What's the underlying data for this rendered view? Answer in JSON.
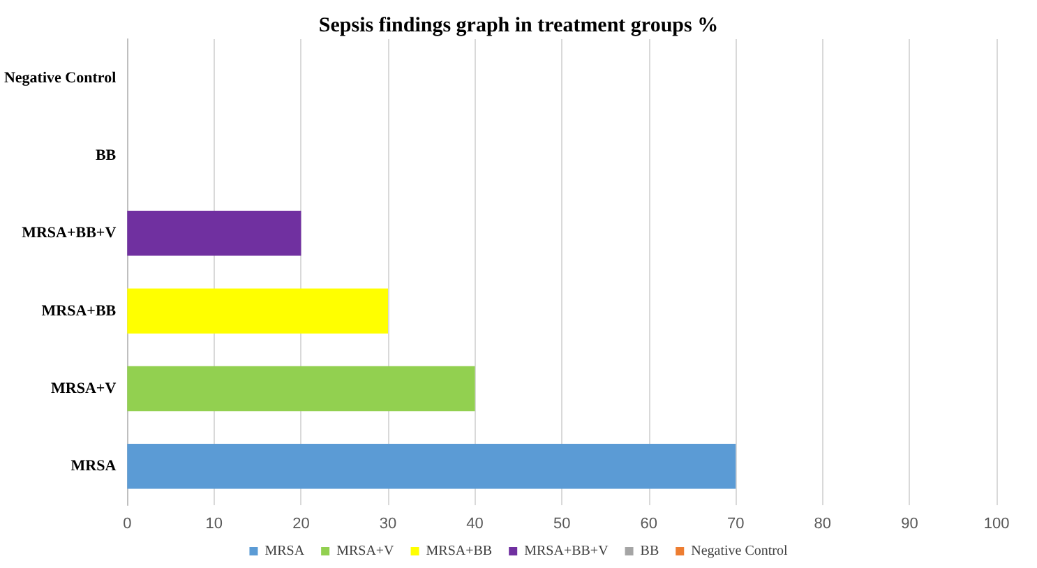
{
  "chart_data": {
    "type": "bar",
    "orientation": "horizontal",
    "title": "Sepsis findings graph in treatment groups %",
    "categories": [
      "Negative Control",
      "BB",
      "MRSA+BB+V",
      "MRSA+BB",
      "MRSA+V",
      "MRSA"
    ],
    "series": [
      {
        "name": "MRSA",
        "color": "#5b9bd5",
        "values": [
          null,
          null,
          null,
          null,
          null,
          70
        ]
      },
      {
        "name": "MRSA+V",
        "color": "#92d050",
        "values": [
          null,
          null,
          null,
          null,
          40,
          null
        ]
      },
      {
        "name": "MRSA+BB",
        "color": "#ffff00",
        "values": [
          null,
          null,
          null,
          30,
          null,
          null
        ]
      },
      {
        "name": "MRSA+BB+V",
        "color": "#7030a0",
        "values": [
          null,
          null,
          20,
          null,
          null,
          null
        ]
      },
      {
        "name": "BB",
        "color": "#a5a5a5",
        "values": [
          null,
          0,
          null,
          null,
          null,
          null
        ]
      },
      {
        "name": "Negative Control",
        "color": "#ed7d31",
        "values": [
          0,
          null,
          null,
          null,
          null,
          null
        ]
      }
    ],
    "xlim": [
      0,
      100
    ],
    "xticks": [
      0,
      10,
      20,
      30,
      40,
      50,
      60,
      70,
      80,
      90,
      100
    ],
    "grid": "x",
    "legend": "bottom"
  }
}
